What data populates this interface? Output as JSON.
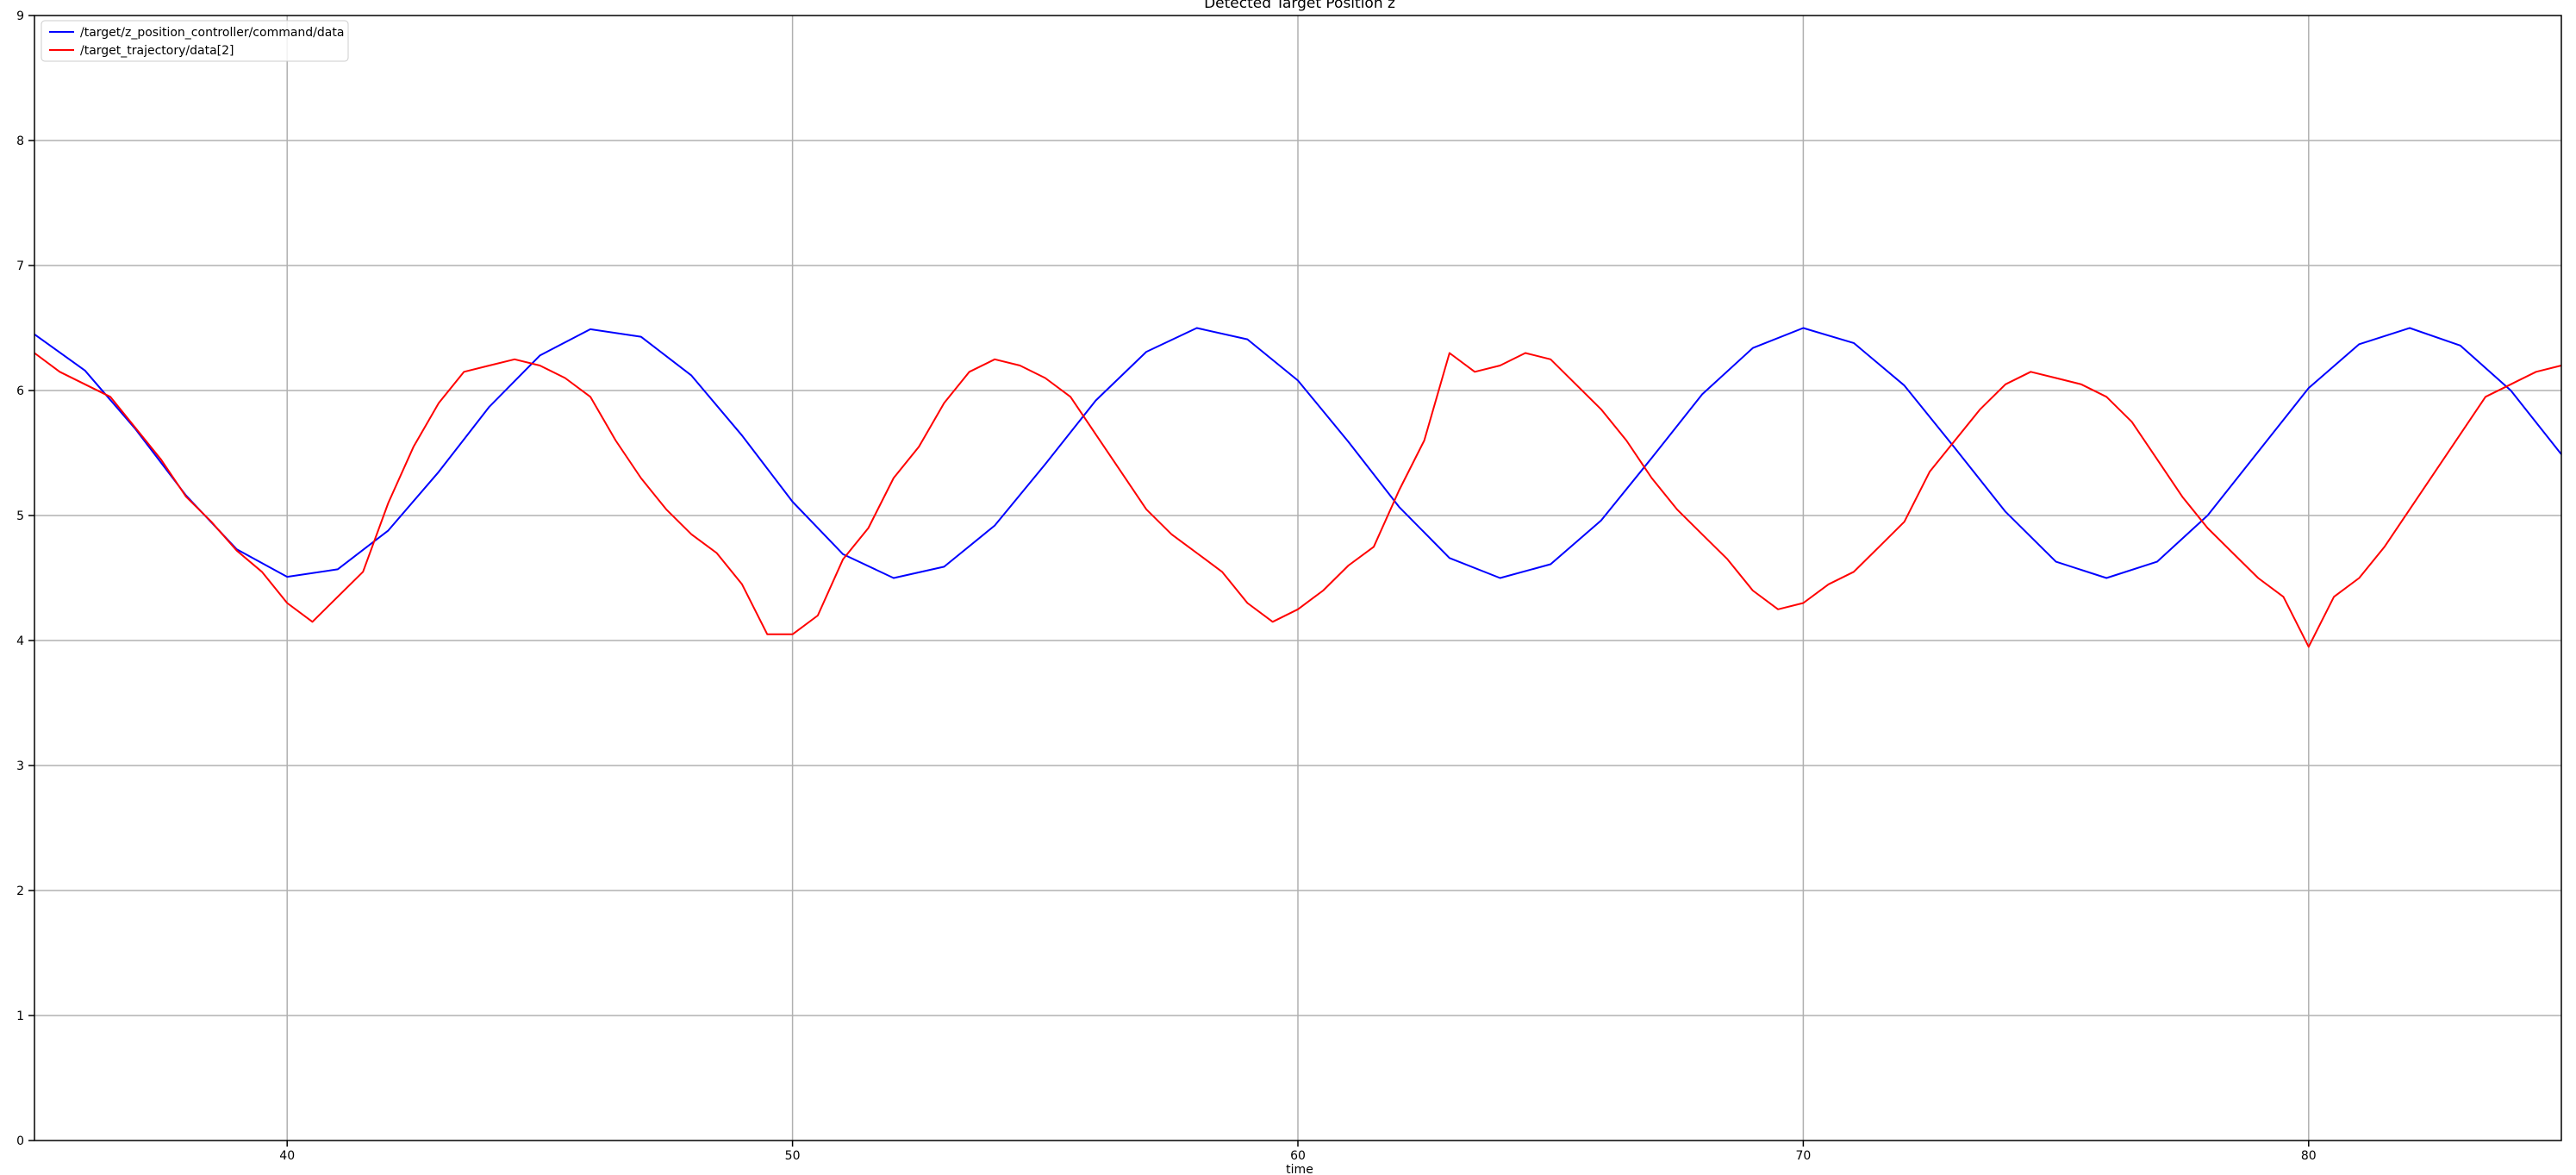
{
  "chart_data": {
    "type": "line",
    "title": "Detected Target Position z",
    "xlabel": "time",
    "ylabel": "",
    "xlim": [
      35,
      85
    ],
    "ylim": [
      0,
      9
    ],
    "x_ticks": [
      40,
      50,
      60,
      70,
      80
    ],
    "y_ticks": [
      0,
      1,
      2,
      3,
      4,
      5,
      6,
      7,
      8,
      9
    ],
    "grid": true,
    "legend_position": "top-left",
    "series": [
      {
        "name": "/target/z_position_controller/command/data",
        "color": "#0000ff",
        "x": [
          35,
          36,
          37,
          38,
          39,
          40,
          41,
          42,
          43,
          44,
          45,
          46,
          47,
          48,
          49,
          50,
          51,
          52,
          53,
          54,
          55,
          56,
          57,
          58,
          59,
          60,
          61,
          62,
          63,
          64,
          65,
          66,
          67,
          68,
          69,
          70,
          71,
          72,
          73,
          74,
          75,
          76,
          77,
          78,
          79,
          80,
          81,
          82,
          83,
          84,
          85
        ],
        "y": [
          6.45,
          6.16,
          5.69,
          5.16,
          4.73,
          4.51,
          4.57,
          4.88,
          5.35,
          5.87,
          6.28,
          6.49,
          6.43,
          6.12,
          5.64,
          5.11,
          4.69,
          4.5,
          4.59,
          4.92,
          5.41,
          5.92,
          6.31,
          6.5,
          6.41,
          6.08,
          5.59,
          5.07,
          4.66,
          4.5,
          4.61,
          4.96,
          5.46,
          5.97,
          6.34,
          6.5,
          6.38,
          6.04,
          5.54,
          5.03,
          4.63,
          4.5,
          4.63,
          5.0,
          5.51,
          6.02,
          6.37,
          6.5,
          6.36,
          6.0,
          5.49
        ]
      },
      {
        "name": "/target_trajectory/data[2]",
        "color": "#ff0000",
        "x": [
          35,
          35.5,
          36,
          36.5,
          37,
          37.5,
          38,
          38.5,
          39,
          39.5,
          40,
          40.5,
          41,
          41.5,
          42,
          42.5,
          43,
          43.5,
          44,
          44.5,
          45,
          45.5,
          46,
          46.5,
          47,
          47.5,
          48,
          48.5,
          49,
          49.5,
          50,
          50.5,
          51,
          51.5,
          52,
          52.5,
          53,
          53.5,
          54,
          54.5,
          55,
          55.5,
          56,
          56.5,
          57,
          57.5,
          58,
          58.5,
          59,
          59.5,
          60,
          60.5,
          61,
          61.5,
          62,
          62.5,
          63,
          63.5,
          64,
          64.5,
          65,
          65.5,
          66,
          66.5,
          67,
          67.5,
          68,
          68.5,
          69,
          69.5,
          70,
          70.5,
          71,
          71.5,
          72,
          72.5,
          73,
          73.5,
          74,
          74.5,
          75,
          75.5,
          76,
          76.5,
          77,
          77.5,
          78,
          78.5,
          79,
          79.5,
          80,
          80.5,
          81,
          81.5,
          82,
          82.5,
          83,
          83.5,
          84,
          84.5,
          85
        ],
        "y": [
          6.3,
          6.15,
          6.05,
          5.95,
          5.7,
          5.45,
          5.15,
          4.95,
          4.72,
          4.55,
          4.3,
          4.15,
          4.35,
          4.55,
          5.1,
          5.55,
          5.9,
          6.15,
          6.2,
          6.25,
          6.2,
          6.1,
          5.95,
          5.6,
          5.3,
          5.05,
          4.85,
          4.7,
          4.45,
          4.05,
          4.05,
          4.2,
          4.65,
          4.9,
          5.3,
          5.55,
          5.9,
          6.15,
          6.25,
          6.2,
          6.1,
          5.95,
          5.65,
          5.35,
          5.05,
          4.85,
          4.7,
          4.55,
          4.3,
          4.15,
          4.25,
          4.4,
          4.6,
          4.75,
          5.2,
          5.6,
          6.3,
          6.15,
          6.2,
          6.3,
          6.25,
          6.05,
          5.85,
          5.6,
          5.3,
          5.05,
          4.85,
          4.65,
          4.4,
          4.25,
          4.3,
          4.45,
          4.55,
          4.75,
          4.95,
          5.35,
          5.6,
          5.85,
          6.05,
          6.15,
          6.1,
          6.05,
          5.95,
          5.75,
          5.45,
          5.15,
          4.9,
          4.7,
          4.5,
          4.35,
          3.95,
          4.35,
          4.5,
          4.75,
          5.05,
          5.35,
          5.65,
          5.95,
          6.05,
          6.15,
          6.2
        ]
      }
    ]
  }
}
